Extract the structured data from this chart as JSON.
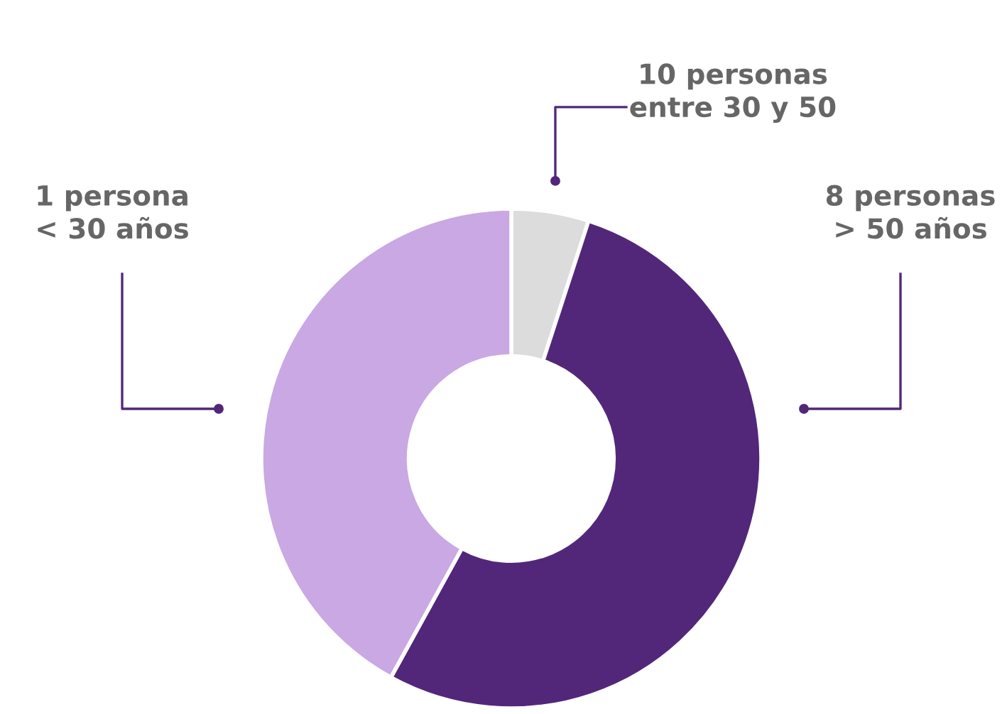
{
  "chart_data": {
    "type": "donut",
    "categories": [
      "10 personas\nentre 30 y 50",
      "8 personas\n> 50 años",
      "1 persona\n< 30 años"
    ],
    "values": [
      5,
      53,
      42
    ],
    "colors": [
      "#dcdcdc",
      "#52277a",
      "#c9a8e3"
    ]
  }
}
